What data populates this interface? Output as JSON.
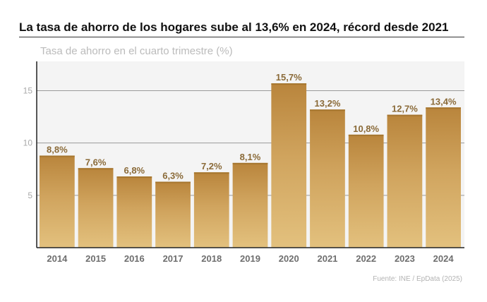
{
  "header": {
    "title": "La tasa de ahorro de los hogares sube al 13,6% en 2024, récord desde 2021",
    "subtitle": "Tasa de ahorro en el cuarto trimestre (%)",
    "source": "Fuente: INE / EpData (2025)"
  },
  "colors": {
    "bar_top": "#b9853c",
    "bar_bottom": "#e3c17e",
    "plot_bg": "#f4f4f4",
    "grid": "#9a9a9a",
    "value_label": "#8a6a38"
  },
  "chart_data": {
    "type": "bar",
    "title": "La tasa de ahorro de los hogares sube al 13,6% en 2024, récord desde 2021",
    "ylabel": "Tasa de ahorro en el cuarto trimestre (%)",
    "xlabel": "",
    "categories": [
      "2014",
      "2015",
      "2016",
      "2017",
      "2018",
      "2019",
      "2020",
      "2021",
      "2022",
      "2023",
      "2024"
    ],
    "values": [
      8.8,
      7.6,
      6.8,
      6.3,
      7.2,
      8.1,
      15.7,
      13.2,
      10.8,
      12.7,
      13.4
    ],
    "value_labels": [
      "8,8%",
      "7,6%",
      "6,8%",
      "6,3%",
      "7,2%",
      "8,1%",
      "15,7%",
      "13,2%",
      "10,8%",
      "12,7%",
      "13,4%"
    ],
    "yticks": [
      5,
      10,
      15
    ],
    "ytick_labels": [
      "5",
      "10",
      "15"
    ],
    "ylim": [
      0,
      17.8
    ],
    "grid": true
  }
}
